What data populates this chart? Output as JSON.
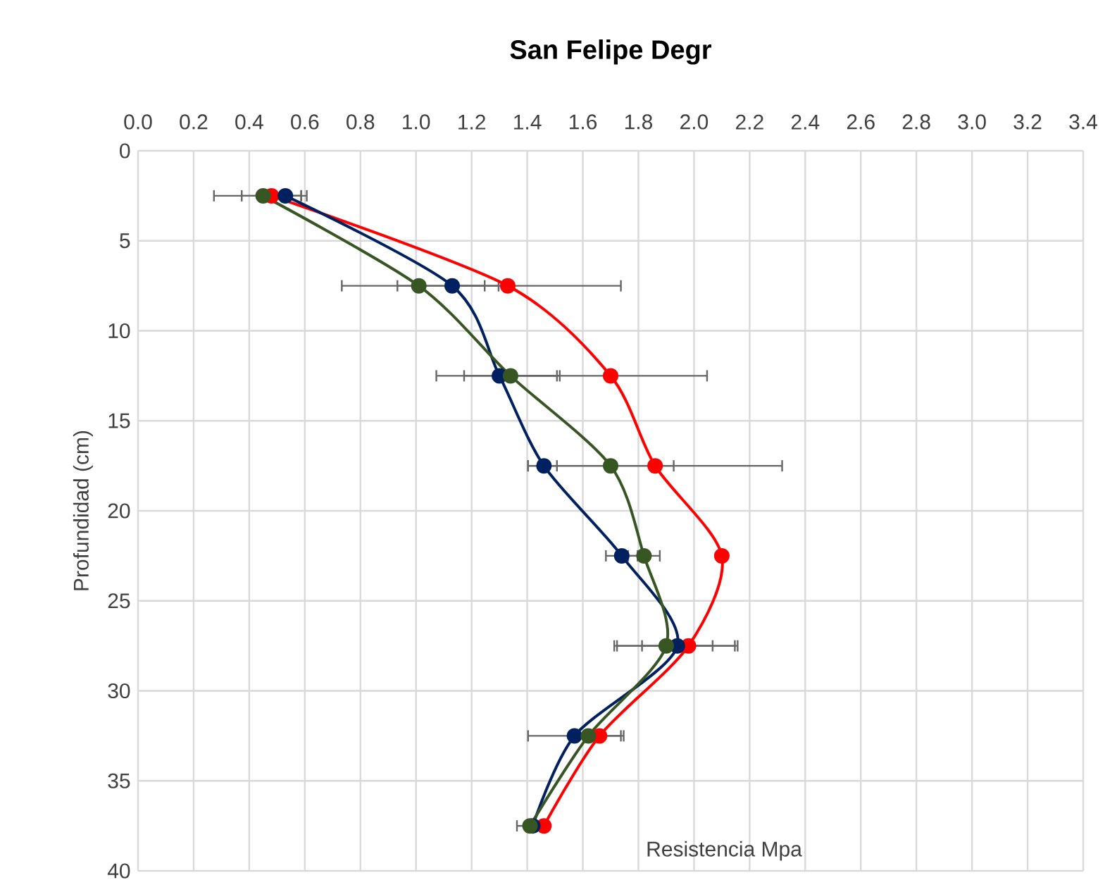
{
  "chart_data": {
    "type": "line",
    "title": "San Felipe Degr",
    "xlabel": "Resistencia Mpa",
    "ylabel": "Profundidad (cm)",
    "xlim": [
      0,
      3.4
    ],
    "xticks": [
      {
        "value": 0,
        "label": "0.0"
      },
      0.2,
      0.4,
      0.6,
      0.8,
      {
        "value": 1,
        "label": "1.0"
      },
      1.2,
      1.4,
      1.6,
      1.8,
      {
        "value": 2,
        "label": "2.0"
      },
      2.2,
      2.4,
      2.6,
      2.8,
      {
        "value": 3,
        "label": "3.0"
      },
      3.2,
      3.4
    ],
    "ylim": [
      40,
      0
    ],
    "yticks": [
      0,
      5,
      10,
      15,
      20,
      25,
      30,
      35,
      40
    ],
    "grid": true,
    "marker": "circle",
    "series": [
      {
        "color": "#ff0000",
        "x": [
          0.48,
          1.33,
          1.7,
          1.86,
          2.1,
          1.98,
          1.66,
          1.46
        ],
        "values": [
          2.5,
          7.5,
          12.5,
          17.5,
          22.5,
          27.5,
          32.5,
          37.5
        ],
        "xerrors": [
          [
            0.37,
            0.59
          ],
          [
            0.93,
            1.74
          ],
          [
            1.35,
            2.05
          ],
          [
            1.4,
            2.32
          ],
          null,
          [
            1.81,
            2.16
          ],
          [
            1.58,
            1.75
          ],
          null
        ]
      },
      {
        "color": "#002060",
        "x": [
          0.53,
          1.13,
          1.3,
          1.46,
          1.74,
          1.94,
          1.57,
          1.42
        ],
        "values": [
          2.5,
          7.5,
          12.5,
          17.5,
          22.5,
          27.5,
          32.5,
          37.5
        ],
        "xerrors": [
          [
            0.46,
            0.59
          ],
          [
            1.13,
            1.25
          ],
          [
            1.07,
            1.52
          ],
          [
            1.4,
            1.51
          ],
          [
            1.68,
            1.8
          ],
          [
            1.72,
            2.15
          ],
          [
            1.4,
            1.74
          ],
          null
        ]
      },
      {
        "color": "#375623",
        "x": [
          0.45,
          1.01,
          1.34,
          1.7,
          1.82,
          1.9,
          1.62,
          1.41
        ],
        "values": [
          2.5,
          7.5,
          12.5,
          17.5,
          22.5,
          27.5,
          32.5,
          37.5
        ],
        "xerrors": [
          [
            0.27,
            0.61
          ],
          [
            0.73,
            1.3
          ],
          [
            1.17,
            1.51
          ],
          [
            1.47,
            1.93
          ],
          [
            1.76,
            1.88
          ],
          [
            1.71,
            2.07
          ],
          null,
          [
            1.36,
            1.41
          ]
        ]
      }
    ]
  }
}
